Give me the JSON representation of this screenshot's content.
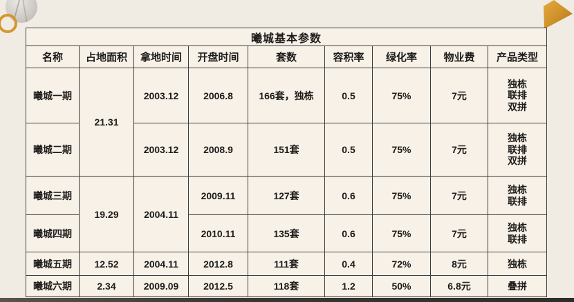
{
  "colors": {
    "background": "#f1ece3",
    "cell_fill": "#f7f1e8",
    "border": "#3c3c3c",
    "accent_gold": "#d4972e",
    "bottom_bar": "#3a3733"
  },
  "decorations": {
    "marble_circle": "marble-photo-circle",
    "gold_ring": "gold-ring",
    "gold_triangle": "gold-triangle"
  },
  "table": {
    "title": "曦城基本参数",
    "columns": [
      "名称",
      "占地面积",
      "拿地时间",
      "开盘时间",
      "套数",
      "容积率",
      "绿化率",
      "物业费",
      "产品类型"
    ],
    "rows": [
      {
        "cells": [
          {
            "text": "曦城一期"
          },
          {
            "text": "21.31",
            "rowspan": 2
          },
          {
            "text": "2003.12"
          },
          {
            "text": "2006.8"
          },
          {
            "text": "166套，独栋"
          },
          {
            "text": "0.5"
          },
          {
            "text": "75%"
          },
          {
            "text": "7元"
          },
          {
            "lines": [
              "独栋",
              "联排",
              "双拼"
            ],
            "align": "top"
          }
        ]
      },
      {
        "cells": [
          {
            "text": "曦城二期"
          },
          {
            "text": "2003.12"
          },
          {
            "text": "2008.9"
          },
          {
            "text": "151套"
          },
          {
            "text": "0.5"
          },
          {
            "text": "75%"
          },
          {
            "text": "7元"
          },
          {
            "lines": [
              "独栋",
              "联排",
              "双拼"
            ]
          }
        ]
      },
      {
        "cells": [
          {
            "text": "曦城三期"
          },
          {
            "text": "19.29",
            "rowspan": 2
          },
          {
            "text": "2004.11",
            "rowspan": 2
          },
          {
            "text": "2009.11"
          },
          {
            "text": "127套"
          },
          {
            "text": "0.6"
          },
          {
            "text": "75%"
          },
          {
            "text": "7元"
          },
          {
            "lines": [
              "独栋",
              "联排"
            ]
          }
        ]
      },
      {
        "cells": [
          {
            "text": "曦城四期"
          },
          {
            "text": "2010.11"
          },
          {
            "text": "135套"
          },
          {
            "text": "0.6"
          },
          {
            "text": "75%"
          },
          {
            "text": "7元"
          },
          {
            "lines": [
              "独栋",
              "联排"
            ]
          }
        ]
      },
      {
        "cells": [
          {
            "text": "曦城五期"
          },
          {
            "text": "12.52"
          },
          {
            "text": "2004.11"
          },
          {
            "text": "2012.8"
          },
          {
            "text": "111套"
          },
          {
            "text": "0.4"
          },
          {
            "text": "72%"
          },
          {
            "text": "8元"
          },
          {
            "text": "独栋"
          }
        ]
      },
      {
        "cells": [
          {
            "text": "曦城六期"
          },
          {
            "text": "2.34"
          },
          {
            "text": "2009.09"
          },
          {
            "text": "2012.5"
          },
          {
            "text": "118套"
          },
          {
            "text": "1.2"
          },
          {
            "text": "50%"
          },
          {
            "text": "6.8元"
          },
          {
            "text": "叠拼"
          }
        ]
      }
    ]
  }
}
